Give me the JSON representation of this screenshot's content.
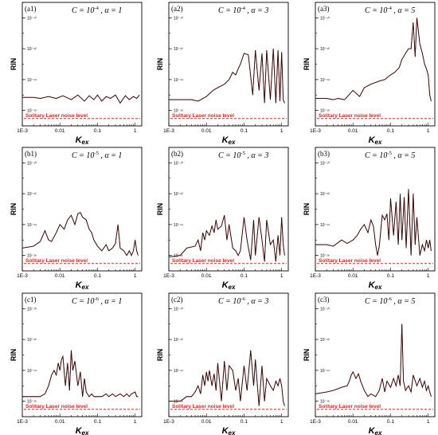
{
  "figure": {
    "noise_label": "Solitary Laser noise level",
    "y_axis_label": "RIN",
    "x_axis_label_main": "K",
    "x_axis_label_sub": "ex",
    "trace_color": "#111111",
    "overlay_color": "#e8201c",
    "noise_color": "#e8201c"
  },
  "chart_data": [
    {
      "type": "line",
      "panel": "(a1)",
      "C_base": "10",
      "C_exp": "-4",
      "alpha": "1",
      "xscale": "log",
      "yscale": "log",
      "xlim": [
        0.001,
        1.5
      ],
      "ylim": [
        1e-17,
        1e-09
      ],
      "x_ticks": [
        "1E-3",
        "0.01",
        "0.1",
        "1"
      ],
      "y_ticks": [
        "10⁻¹⁶",
        "10⁻¹⁴",
        "10⁻¹²",
        "10⁻¹⁰"
      ],
      "noise_level": 3e-17,
      "series": [
        {
          "x": [
            0.001,
            0.002,
            0.003,
            0.005,
            0.008,
            0.012,
            0.02,
            0.03,
            0.045,
            0.06,
            0.08,
            0.1,
            0.13,
            0.17,
            0.22,
            0.3,
            0.4,
            0.55,
            0.7,
            0.9,
            1.1,
            1.3
          ],
          "y": [
            7e-16,
            7e-16,
            6e-16,
            8e-16,
            6e-16,
            9e-16,
            5e-16,
            1e-15,
            4e-16,
            9e-16,
            5e-16,
            1e-15,
            4e-16,
            8e-16,
            6e-16,
            1e-15,
            3e-16,
            9e-16,
            5e-16,
            8e-16,
            6e-16,
            1e-15
          ]
        }
      ]
    },
    {
      "type": "line",
      "panel": "(a2)",
      "C_base": "10",
      "C_exp": "-4",
      "alpha": "3",
      "xscale": "log",
      "yscale": "log",
      "xlim": [
        0.001,
        1.5
      ],
      "ylim": [
        1e-17,
        1e-09
      ],
      "x_ticks": [
        "1E-3",
        "0.01",
        "0.1",
        "1"
      ],
      "y_ticks": [
        "10⁻¹⁶",
        "10⁻¹⁴",
        "10⁻¹²",
        "10⁻¹⁰"
      ],
      "noise_level": 3e-17,
      "series": [
        {
          "x": [
            0.001,
            0.002,
            0.003,
            0.004,
            0.006,
            0.01,
            0.015,
            0.02,
            0.03,
            0.04,
            0.05,
            0.06,
            0.07,
            0.08,
            0.1,
            0.13,
            0.17,
            0.2,
            0.25,
            0.3,
            0.35,
            0.4,
            0.5,
            0.6,
            0.7,
            0.8,
            0.9,
            1.0,
            1.1,
            1.2
          ],
          "y": [
            5e-16,
            5e-16,
            5e-16,
            5e-16,
            4e-16,
            8e-16,
            2e-15,
            3e-15,
            5e-15,
            1e-14,
            3e-14,
            2e-14,
            5e-14,
            1e-13,
            5e-13,
            4e-13,
            1e-15,
            8e-13,
            2e-15,
            5e-13,
            3e-16,
            8e-13,
            5e-16,
            1e-12,
            3e-16,
            8e-13,
            4e-16,
            6e-13,
            5e-16,
            3e-16
          ]
        }
      ]
    },
    {
      "type": "line",
      "panel": "(a3)",
      "C_base": "10",
      "C_exp": "-4",
      "alpha": "5",
      "xscale": "log",
      "yscale": "log",
      "xlim": [
        0.001,
        1.5
      ],
      "ylim": [
        1e-17,
        1e-09
      ],
      "x_ticks": [
        "1E-3",
        "0.01",
        "0.1",
        "1"
      ],
      "y_ticks": [
        "10⁻¹⁶",
        "10⁻¹⁴",
        "10⁻¹²",
        "10⁻¹⁰"
      ],
      "noise_level": 3e-17,
      "series": [
        {
          "x": [
            0.001,
            0.002,
            0.003,
            0.004,
            0.006,
            0.01,
            0.015,
            0.02,
            0.03,
            0.05,
            0.07,
            0.1,
            0.13,
            0.17,
            0.2,
            0.25,
            0.3,
            0.35,
            0.4,
            0.45,
            0.5,
            0.6,
            0.7,
            0.8,
            0.9,
            1.0,
            1.1,
            1.2
          ],
          "y": [
            6e-16,
            6e-16,
            5e-16,
            6e-16,
            5e-16,
            2e-15,
            8e-16,
            3e-15,
            5e-15,
            8e-15,
            1e-14,
            2e-14,
            3e-14,
            6e-14,
            2e-13,
            5e-13,
            1e-12,
            1e-12,
            5e-11,
            3e-13,
            1e-10,
            2e-12,
            5e-13,
            1e-13,
            5e-14,
            2e-14,
            1e-15,
            4e-16
          ]
        }
      ]
    },
    {
      "type": "line",
      "panel": "(b1)",
      "C_base": "10",
      "C_exp": "-5",
      "alpha": "1",
      "xscale": "log",
      "yscale": "log",
      "xlim": [
        0.001,
        1.5
      ],
      "ylim": [
        1e-17,
        1e-09
      ],
      "x_ticks": [
        "1E-3",
        "0.01",
        "0.1",
        "1"
      ],
      "y_ticks": [
        "10⁻¹⁶",
        "10⁻¹⁴",
        "10⁻¹²",
        "10⁻¹⁰"
      ],
      "noise_level": 3e-17,
      "series": [
        {
          "x": [
            0.001,
            0.002,
            0.003,
            0.004,
            0.005,
            0.006,
            0.008,
            0.01,
            0.013,
            0.016,
            0.02,
            0.025,
            0.03,
            0.035,
            0.04,
            0.05,
            0.06,
            0.07,
            0.08,
            0.1,
            0.13,
            0.17,
            0.2,
            0.25,
            0.3,
            0.35,
            0.4,
            0.5,
            0.6,
            0.7,
            0.8,
            0.9,
            1.0,
            1.1,
            1.2
          ],
          "y": [
            3e-16,
            4e-16,
            8e-16,
            4e-15,
            1e-15,
            8e-16,
            3e-15,
            1e-14,
            5e-15,
            2e-14,
            4e-14,
            1e-14,
            5e-14,
            6e-14,
            3e-14,
            2e-14,
            5e-15,
            3e-15,
            1e-15,
            4e-16,
            2e-16,
            5e-16,
            2e-16,
            3e-16,
            6e-16,
            1e-14,
            3e-16,
            2e-16,
            1e-16,
            2e-16,
            1e-16,
            2e-16,
            1e-15,
            2e-16,
            1e-16
          ]
        }
      ]
    },
    {
      "type": "line",
      "panel": "(b2)",
      "C_base": "10",
      "C_exp": "-5",
      "alpha": "3",
      "xscale": "log",
      "yscale": "log",
      "xlim": [
        0.001,
        1.5
      ],
      "ylim": [
        1e-17,
        1e-09
      ],
      "x_ticks": [
        "1E-3",
        "0.01",
        "0.1",
        "1"
      ],
      "y_ticks": [
        "10⁻¹⁶",
        "10⁻¹⁴",
        "10⁻¹²",
        "10⁻¹⁰"
      ],
      "noise_level": 3e-17,
      "series": [
        {
          "x": [
            0.001,
            0.002,
            0.003,
            0.005,
            0.006,
            0.007,
            0.008,
            0.009,
            0.01,
            0.012,
            0.014,
            0.016,
            0.018,
            0.02,
            0.025,
            0.03,
            0.035,
            0.04,
            0.05,
            0.06,
            0.07,
            0.08,
            0.1,
            0.12,
            0.15,
            0.18,
            0.2,
            0.25,
            0.3,
            0.35,
            0.4,
            0.5,
            0.6,
            0.7,
            0.8,
            0.9,
            1.0,
            1.1,
            1.2
          ],
          "y": [
            8e-17,
            1e-16,
            3e-16,
            4e-16,
            1e-15,
            2e-16,
            3e-15,
            1e-15,
            4e-15,
            2e-15,
            8e-15,
            3e-15,
            2e-14,
            5e-15,
            8e-15,
            4e-14,
            1e-15,
            1e-14,
            3e-16,
            2e-16,
            1e-16,
            2e-16,
            3e-14,
            1e-15,
            5e-17,
            2e-14,
            1e-16,
            3e-14,
            1e-15,
            4e-17,
            2e-14,
            5e-16,
            1e-15,
            4e-17,
            2e-15,
            1e-16,
            3e-14,
            5e-16,
            1e-16
          ]
        }
      ]
    },
    {
      "type": "line",
      "panel": "(b3)",
      "C_base": "10",
      "C_exp": "-5",
      "alpha": "5",
      "xscale": "log",
      "yscale": "log",
      "xlim": [
        0.001,
        1.5
      ],
      "ylim": [
        1e-17,
        1e-09
      ],
      "x_ticks": [
        "1E-3",
        "0.01",
        "0.1",
        "1"
      ],
      "y_ticks": [
        "10⁻¹⁶",
        "10⁻¹⁴",
        "10⁻¹²",
        "10⁻¹⁰"
      ],
      "noise_level": 3e-17,
      "series": [
        {
          "x": [
            0.001,
            0.002,
            0.003,
            0.005,
            0.007,
            0.01,
            0.013,
            0.016,
            0.02,
            0.025,
            0.03,
            0.035,
            0.04,
            0.045,
            0.05,
            0.06,
            0.07,
            0.08,
            0.09,
            0.1,
            0.12,
            0.14,
            0.16,
            0.18,
            0.2,
            0.23,
            0.26,
            0.3,
            0.35,
            0.4,
            0.45,
            0.5,
            0.6,
            0.7,
            0.8,
            0.9,
            1.0,
            1.1,
            1.2
          ],
          "y": [
            5e-16,
            5e-16,
            4e-16,
            1e-15,
            6e-16,
            1e-15,
            2e-15,
            5e-15,
            1e-14,
            3e-15,
            2e-14,
            8e-15,
            5e-16,
            1e-16,
            4e-16,
            4e-14,
            2e-14,
            5e-14,
            1e-15,
            5e-13,
            2e-15,
            3e-13,
            5e-16,
            1e-12,
            1e-15,
            6e-13,
            3e-16,
            2e-12,
            1e-16,
            1e-12,
            5e-16,
            3e-14,
            1e-16,
            5e-16,
            2e-16,
            1e-15,
            3e-16,
            1e-15,
            2e-16
          ]
        }
      ]
    },
    {
      "type": "line",
      "panel": "(c1)",
      "C_base": "10",
      "C_exp": "-6",
      "alpha": "1",
      "xscale": "log",
      "yscale": "log",
      "xlim": [
        0.001,
        1.5
      ],
      "ylim": [
        1e-17,
        1e-09
      ],
      "x_ticks": [
        "1E-3",
        "0.01",
        "0.1",
        "1"
      ],
      "y_ticks": [
        "10⁻¹⁶",
        "10⁻¹⁴",
        "10⁻¹²",
        "10⁻¹⁰"
      ],
      "noise_level": 3e-17,
      "series": [
        {
          "x": [
            0.001,
            0.002,
            0.003,
            0.004,
            0.005,
            0.006,
            0.007,
            0.008,
            0.009,
            0.01,
            0.011,
            0.012,
            0.014,
            0.016,
            0.018,
            0.02,
            0.022,
            0.025,
            0.03,
            0.035,
            0.04,
            0.045,
            0.05,
            0.06,
            0.07,
            0.08,
            0.1,
            0.13,
            0.17,
            0.2,
            0.25,
            0.3,
            0.4,
            0.5,
            0.6,
            0.7,
            0.8,
            1.0,
            1.1,
            1.2
          ],
          "y": [
            2e-16,
            2e-16,
            2e-16,
            3e-16,
            1e-15,
            5e-15,
            1e-14,
            5e-15,
            3e-14,
            1e-14,
            5e-14,
            8e-14,
            1e-15,
            3e-14,
            5e-16,
            2e-13,
            1e-14,
            4e-14,
            1e-15,
            8e-15,
            2e-16,
            3e-15,
            4e-16,
            2e-16,
            3e-16,
            2e-16,
            2e-16,
            2e-16,
            3e-16,
            2e-16,
            3e-16,
            2e-16,
            3e-16,
            2e-16,
            3e-16,
            2e-16,
            3e-16,
            4e-16,
            2e-16,
            2e-16
          ]
        }
      ]
    },
    {
      "type": "line",
      "panel": "(c2)",
      "C_base": "10",
      "C_exp": "-6",
      "alpha": "3",
      "xscale": "log",
      "yscale": "log",
      "xlim": [
        0.001,
        1.5
      ],
      "ylim": [
        1e-17,
        1e-09
      ],
      "x_ticks": [
        "1E-3",
        "0.01",
        "0.1",
        "1"
      ],
      "y_ticks": [
        "10⁻¹⁶",
        "10⁻¹⁴",
        "10⁻¹²",
        "10⁻¹⁰"
      ],
      "noise_level": 3e-17,
      "series": [
        {
          "x": [
            0.001,
            0.002,
            0.003,
            0.004,
            0.005,
            0.006,
            0.007,
            0.008,
            0.009,
            0.01,
            0.011,
            0.012,
            0.014,
            0.016,
            0.018,
            0.02,
            0.025,
            0.03,
            0.035,
            0.04,
            0.05,
            0.06,
            0.07,
            0.08,
            0.1,
            0.12,
            0.15,
            0.18,
            0.2,
            0.25,
            0.3,
            0.35,
            0.4,
            0.5,
            0.6,
            0.7,
            0.8,
            0.9,
            1.0,
            1.1,
            1.2
          ],
          "y": [
            1e-16,
            1e-16,
            2e-16,
            2e-16,
            4e-16,
            1e-15,
            3e-16,
            5e-15,
            1e-15,
            8e-15,
            2e-15,
            1e-14,
            1e-15,
            6e-15,
            5e-16,
            3e-14,
            1e-16,
            4e-14,
            5e-16,
            2e-14,
            1e-14,
            5e-16,
            3e-15,
            1e-16,
            2e-14,
            5e-16,
            2e-13,
            1e-15,
            5e-14,
            5e-17,
            2e-14,
            1e-16,
            3e-15,
            1e-15,
            5e-16,
            2e-15,
            1e-15,
            3e-15,
            1e-15,
            1e-16,
            5e-17
          ]
        }
      ]
    },
    {
      "type": "line",
      "panel": "(c3)",
      "C_base": "10",
      "C_exp": "-6",
      "alpha": "5",
      "xscale": "log",
      "yscale": "log",
      "xlim": [
        0.001,
        1.5
      ],
      "ylim": [
        1e-17,
        1e-09
      ],
      "x_ticks": [
        "1E-3",
        "0.01",
        "0.1",
        "1"
      ],
      "y_ticks": [
        "10⁻¹⁶",
        "10⁻¹⁴",
        "10⁻¹²",
        "10⁻¹⁰"
      ],
      "noise_level": 3e-17,
      "series": [
        {
          "x": [
            0.001,
            0.002,
            0.003,
            0.005,
            0.007,
            0.008,
            0.009,
            0.01,
            0.012,
            0.014,
            0.016,
            0.02,
            0.025,
            0.03,
            0.04,
            0.05,
            0.06,
            0.07,
            0.08,
            0.1,
            0.12,
            0.14,
            0.16,
            0.18,
            0.2,
            0.22,
            0.25,
            0.3,
            0.35,
            0.4,
            0.5,
            0.6,
            0.7,
            0.8,
            0.9,
            1.0,
            1.1,
            1.2
          ],
          "y": [
            3e-16,
            4e-16,
            5e-16,
            8e-16,
            1e-15,
            2e-15,
            5e-15,
            8e-15,
            3e-15,
            6e-15,
            2e-15,
            5e-16,
            2e-16,
            3e-16,
            2e-16,
            5e-16,
            3e-15,
            4e-16,
            2e-15,
            8e-16,
            3e-15,
            1e-15,
            5e-15,
            1e-15,
            1e-11,
            2e-15,
            5e-16,
            1e-15,
            4e-16,
            5e-15,
            1e-15,
            3e-15,
            8e-16,
            2e-15,
            5e-16,
            1e-15,
            4e-16,
            2e-16
          ]
        }
      ]
    }
  ]
}
